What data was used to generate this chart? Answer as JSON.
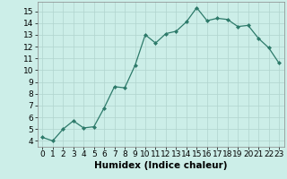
{
  "x": [
    0,
    1,
    2,
    3,
    4,
    5,
    6,
    7,
    8,
    9,
    10,
    11,
    12,
    13,
    14,
    15,
    16,
    17,
    18,
    19,
    20,
    21,
    22,
    23
  ],
  "y": [
    4.3,
    4.0,
    5.0,
    5.7,
    5.1,
    5.2,
    6.8,
    8.6,
    8.5,
    10.4,
    13.0,
    12.3,
    13.1,
    13.3,
    14.1,
    15.3,
    14.2,
    14.4,
    14.3,
    13.7,
    13.8,
    12.7,
    11.9,
    10.6
  ],
  "line_color": "#2d7a6a",
  "bg_color": "#cceee8",
  "grid_color": "#b0d4ce",
  "xlabel": "Humidex (Indice chaleur)",
  "xlim": [
    -0.5,
    23.5
  ],
  "ylim": [
    3.5,
    15.8
  ],
  "yticks": [
    4,
    5,
    6,
    7,
    8,
    9,
    10,
    11,
    12,
    13,
    14,
    15
  ],
  "xticks": [
    0,
    1,
    2,
    3,
    4,
    5,
    6,
    7,
    8,
    9,
    10,
    11,
    12,
    13,
    14,
    15,
    16,
    17,
    18,
    19,
    20,
    21,
    22,
    23
  ],
  "marker": "D",
  "marker_size": 2.0,
  "line_width": 0.9,
  "tick_fontsize": 6.5,
  "xlabel_fontsize": 7.5
}
